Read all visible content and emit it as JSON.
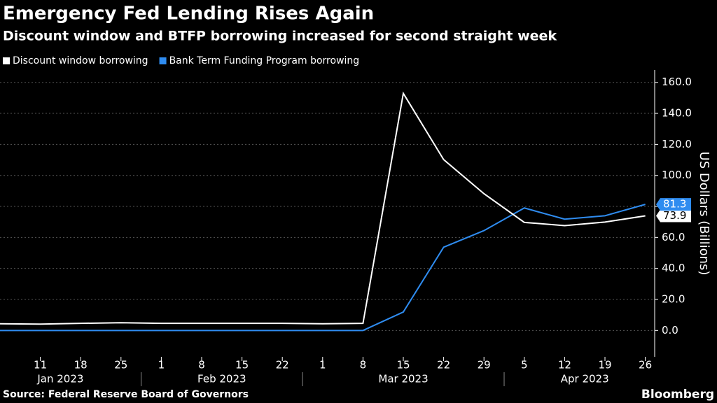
{
  "chart_data": {
    "type": "line",
    "title": "Emergency Fed Lending Rises Again",
    "subtitle": "Discount window and BTFP borrowing increased for second straight week",
    "y_label": "US Dollars (Billions)",
    "source": "Source: Federal Reserve Board of Governors",
    "brand": "Bloomberg",
    "categories": [
      null,
      "11",
      "18",
      "25",
      "1",
      "8",
      "15",
      "22",
      "1",
      "8",
      "15",
      "22",
      "29",
      "5",
      "12",
      "19",
      "26"
    ],
    "month_labels": [
      "Jan 2023",
      "Feb 2023",
      "Mar 2023",
      "Apr 2023"
    ],
    "series": [
      {
        "name": "Discount window borrowing",
        "color": "#ffffff",
        "values": [
          4.3,
          4.1,
          4.6,
          5.0,
          4.6,
          4.6,
          4.6,
          4.6,
          4.3,
          4.6,
          152.9,
          110.2,
          88.2,
          69.7,
          67.6,
          69.9,
          73.9
        ]
      },
      {
        "name": "Bank Term Funding Program borrowing",
        "color": "#2f8cf0",
        "values": [
          0,
          0,
          0,
          0,
          0,
          0,
          0,
          0,
          0,
          0,
          11.9,
          53.7,
          64.4,
          79.0,
          71.8,
          74.0,
          81.3
        ]
      }
    ],
    "ylim": [
      -17,
      168
    ],
    "yticks": [
      {
        "value": 0,
        "label": "0.0"
      },
      {
        "value": 20,
        "label": "20.0"
      },
      {
        "value": 40,
        "label": "40.0"
      },
      {
        "value": 60,
        "label": "60.0"
      },
      {
        "value": 80,
        "label": "80.0"
      },
      {
        "value": 100,
        "label": "100.0"
      },
      {
        "value": 120,
        "label": "120.0"
      },
      {
        "value": 140,
        "label": "140.0"
      },
      {
        "value": 160,
        "label": "160.0"
      }
    ],
    "grid": true,
    "y_axis_side": "right"
  }
}
